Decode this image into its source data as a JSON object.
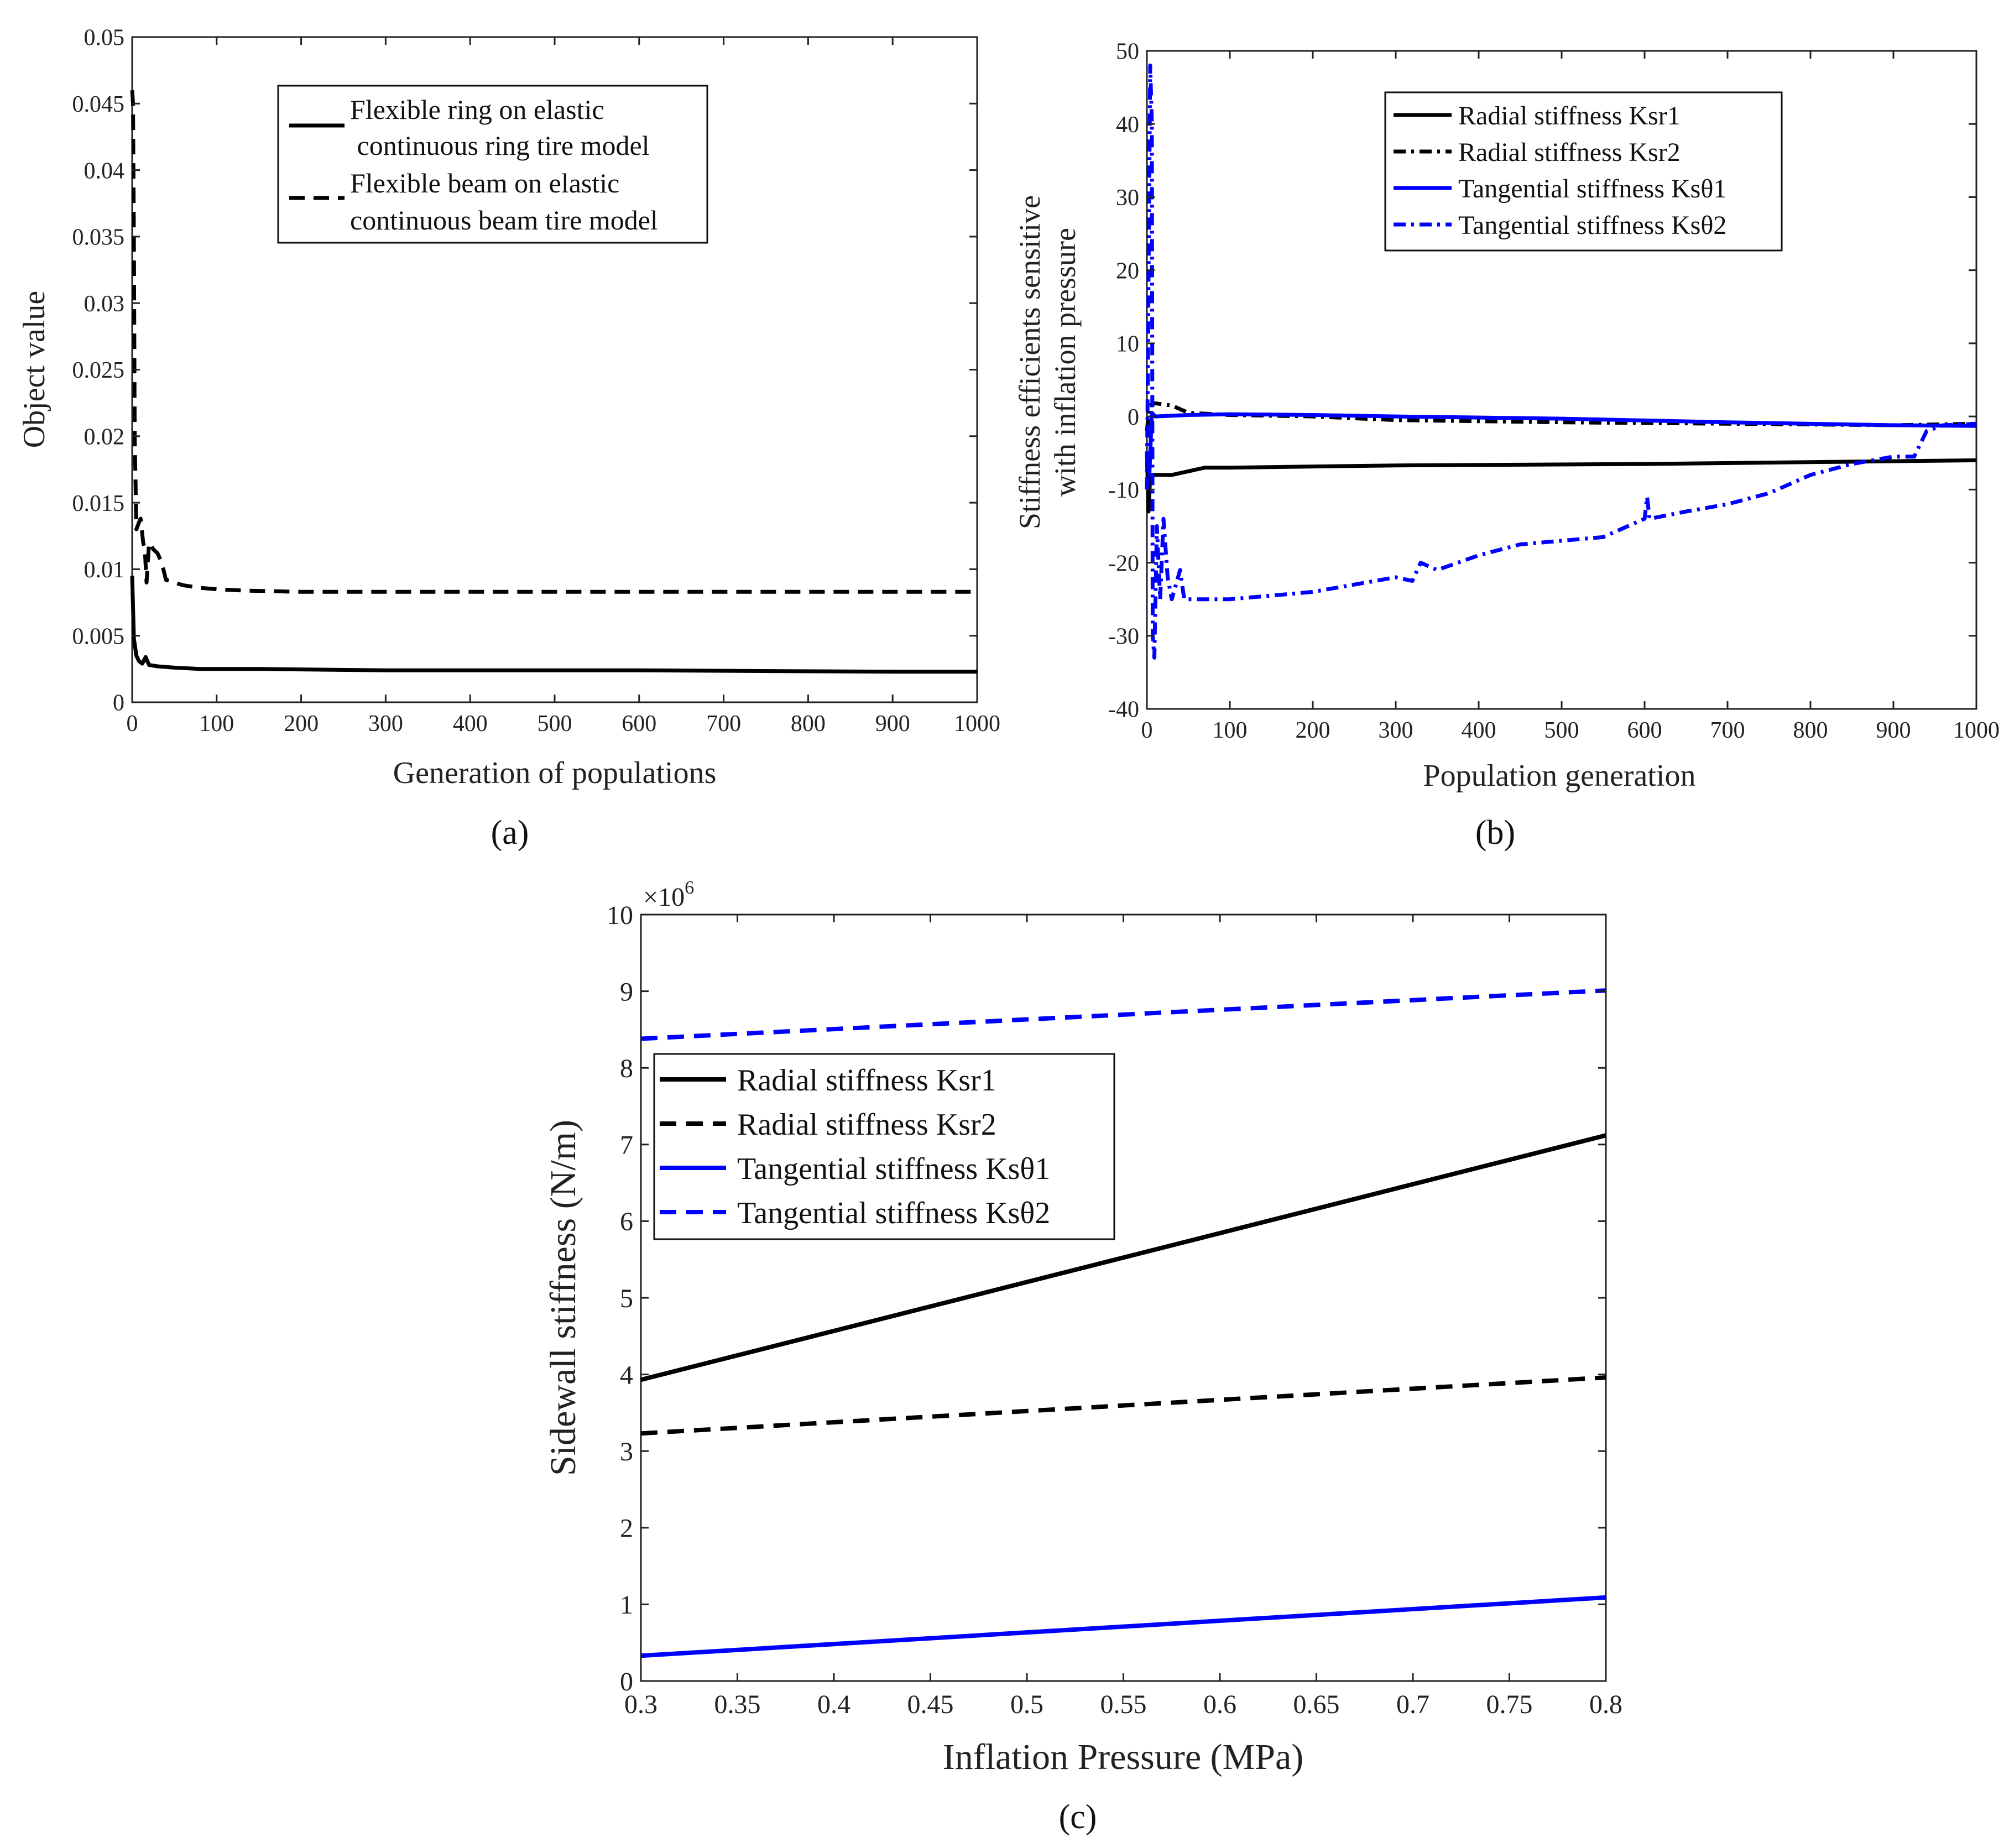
{
  "figure": {
    "panel_a_label": "(a)",
    "panel_b_label": "(b)",
    "panel_c_label": "(c)"
  },
  "chart_data": [
    {
      "id": "a",
      "type": "line",
      "title": "",
      "xlabel": "Generation of populations",
      "ylabel": "Object value",
      "xlim": [
        0,
        1000
      ],
      "ylim": [
        0,
        0.05
      ],
      "xticks": [
        0,
        100,
        200,
        300,
        400,
        500,
        600,
        700,
        800,
        900,
        1000
      ],
      "xtick_labels": [
        "0",
        "100",
        "200",
        "300",
        "400",
        "500",
        "600",
        "700",
        "800",
        "900",
        "1000"
      ],
      "yticks": [
        0,
        0.005,
        0.01,
        0.015,
        0.02,
        0.025,
        0.03,
        0.035,
        0.04,
        0.045,
        0.05
      ],
      "ytick_labels": [
        "0",
        "0.005",
        "0.01",
        "0.015",
        "0.02",
        "0.025",
        "0.03",
        "0.035",
        "0.04",
        "0.045",
        "0.05"
      ],
      "legend_position": "top-right",
      "series": [
        {
          "name": "Flexible ring on elastic continuous ring tire model",
          "legend_lines": [
            "Flexible ring on elastic",
            " continuous ring tire model"
          ],
          "color": "#000000",
          "dash": "solid",
          "points": [
            [
              0,
              0.0095
            ],
            [
              2,
              0.0048
            ],
            [
              5,
              0.0035
            ],
            [
              8,
              0.0031
            ],
            [
              12,
              0.0029
            ],
            [
              16,
              0.0034
            ],
            [
              20,
              0.0028
            ],
            [
              30,
              0.0027
            ],
            [
              50,
              0.0026
            ],
            [
              80,
              0.0025
            ],
            [
              150,
              0.0025
            ],
            [
              300,
              0.0024
            ],
            [
              600,
              0.0024
            ],
            [
              900,
              0.0023
            ],
            [
              1000,
              0.0023
            ]
          ]
        },
        {
          "name": "Flexible beam on elastic continuous beam tire model",
          "legend_lines": [
            "Flexible beam on elastic",
            "continuous beam tire model"
          ],
          "color": "#000000",
          "dash": "dashed",
          "points": [
            [
              0,
              0.046
            ],
            [
              1,
              0.045
            ],
            [
              2,
              0.035
            ],
            [
              3,
              0.02
            ],
            [
              5,
              0.013
            ],
            [
              8,
              0.0135
            ],
            [
              10,
              0.0138
            ],
            [
              13,
              0.012
            ],
            [
              15,
              0.0115
            ],
            [
              17,
              0.009
            ],
            [
              20,
              0.012
            ],
            [
              25,
              0.0115
            ],
            [
              30,
              0.0112
            ],
            [
              35,
              0.0105
            ],
            [
              40,
              0.0092
            ],
            [
              60,
              0.0088
            ],
            [
              80,
              0.0086
            ],
            [
              100,
              0.0085
            ],
            [
              130,
              0.0084
            ],
            [
              200,
              0.0083
            ],
            [
              1000,
              0.0083
            ]
          ]
        }
      ]
    },
    {
      "id": "b",
      "type": "line",
      "title": "",
      "xlabel": "Population generation",
      "ylabel_lines": [
        "Stiffness efficients sensitive",
        "with inflation pressure"
      ],
      "xlim": [
        0,
        1000
      ],
      "ylim": [
        -40,
        50
      ],
      "xticks": [
        0,
        100,
        200,
        300,
        400,
        500,
        600,
        700,
        800,
        900,
        1000
      ],
      "xtick_labels": [
        "0",
        "100",
        "200",
        "300",
        "400",
        "500",
        "600",
        "700",
        "800",
        "900",
        "1000"
      ],
      "yticks": [
        -40,
        -30,
        -20,
        -10,
        0,
        10,
        20,
        30,
        40,
        50
      ],
      "ytick_labels": [
        "-40",
        "-30",
        "-20",
        "-10",
        "0",
        "10",
        "20",
        "30",
        "40",
        "50"
      ],
      "legend_position": "top-right",
      "series": [
        {
          "name": "Radial stiffness Ksr1",
          "color": "#000000",
          "dash": "solid",
          "points": [
            [
              0,
              -5
            ],
            [
              2,
              -13
            ],
            [
              4,
              -8
            ],
            [
              10,
              -8
            ],
            [
              30,
              -8
            ],
            [
              50,
              -7.5
            ],
            [
              70,
              -7
            ],
            [
              100,
              -7
            ],
            [
              300,
              -6.7
            ],
            [
              600,
              -6.5
            ],
            [
              1000,
              -6
            ]
          ]
        },
        {
          "name": "Radial stiffness Ksr2",
          "color": "#000000",
          "dash": "dashdot",
          "points": [
            [
              0,
              -2
            ],
            [
              3,
              1.5
            ],
            [
              10,
              1.8
            ],
            [
              30,
              1.5
            ],
            [
              50,
              0.5
            ],
            [
              100,
              0.2
            ],
            [
              200,
              0
            ],
            [
              300,
              -0.5
            ],
            [
              500,
              -0.8
            ],
            [
              700,
              -1
            ],
            [
              900,
              -1.2
            ],
            [
              1000,
              -1
            ]
          ]
        },
        {
          "name": "Tangential stiffness Ksθ1",
          "color": "#0000FF",
          "dash": "solid",
          "points": [
            [
              0,
              -5
            ],
            [
              3,
              -8
            ],
            [
              6,
              0.5
            ],
            [
              10,
              0
            ],
            [
              50,
              0.2
            ],
            [
              100,
              0.3
            ],
            [
              200,
              0.2
            ],
            [
              300,
              0
            ],
            [
              500,
              -0.3
            ],
            [
              700,
              -0.8
            ],
            [
              900,
              -1.2
            ],
            [
              1000,
              -1.3
            ]
          ]
        },
        {
          "name": "Tangential stiffness Ksθ2",
          "color": "#0000FF",
          "dash": "dashdot",
          "points": [
            [
              0,
              -10
            ],
            [
              4,
              48
            ],
            [
              6,
              40
            ],
            [
              7,
              -30
            ],
            [
              9,
              -33
            ],
            [
              12,
              -15
            ],
            [
              16,
              -25
            ],
            [
              20,
              -14
            ],
            [
              25,
              -22
            ],
            [
              30,
              -25
            ],
            [
              40,
              -21
            ],
            [
              45,
              -25
            ],
            [
              100,
              -25
            ],
            [
              150,
              -24.5
            ],
            [
              200,
              -24
            ],
            [
              250,
              -23
            ],
            [
              300,
              -22
            ],
            [
              320,
              -22.5
            ],
            [
              330,
              -20
            ],
            [
              350,
              -21
            ],
            [
              400,
              -19
            ],
            [
              450,
              -17.5
            ],
            [
              500,
              -17
            ],
            [
              550,
              -16.5
            ],
            [
              580,
              -15
            ],
            [
              600,
              -14
            ],
            [
              603,
              -11
            ],
            [
              606,
              -14
            ],
            [
              650,
              -13
            ],
            [
              700,
              -12
            ],
            [
              750,
              -10.5
            ],
            [
              800,
              -8
            ],
            [
              850,
              -6.5
            ],
            [
              900,
              -5.5
            ],
            [
              925,
              -5.5
            ],
            [
              940,
              -2
            ],
            [
              960,
              -1.2
            ],
            [
              1000,
              -1
            ]
          ]
        }
      ]
    },
    {
      "id": "c",
      "type": "line",
      "title": "",
      "xlabel": "Inflation Pressure (MPa)",
      "ylabel": "Sidewall stiffness (N/m)",
      "y_multiplier_base": "×10",
      "y_multiplier_exp": "6",
      "xlim": [
        0.3,
        0.8
      ],
      "ylim": [
        0,
        10
      ],
      "xticks": [
        0.3,
        0.35,
        0.4,
        0.45,
        0.5,
        0.55,
        0.6,
        0.65,
        0.7,
        0.75,
        0.8
      ],
      "xtick_labels": [
        "0.3",
        "0.35",
        "0.4",
        "0.45",
        "0.5",
        "0.55",
        "0.6",
        "0.65",
        "0.7",
        "0.75",
        "0.8"
      ],
      "yticks": [
        0,
        1,
        2,
        3,
        4,
        5,
        6,
        7,
        8,
        9,
        10
      ],
      "ytick_labels": [
        "0",
        "1",
        "2",
        "3",
        "4",
        "5",
        "6",
        "7",
        "8",
        "9",
        "10"
      ],
      "legend_position": "top-left",
      "series": [
        {
          "name": "Radial stiffness Ksr1",
          "color": "#000000",
          "dash": "solid",
          "points": [
            [
              0.3,
              3.93
            ],
            [
              0.8,
              7.12
            ]
          ]
        },
        {
          "name": "Radial stiffness Ksr2",
          "color": "#000000",
          "dash": "dashed",
          "points": [
            [
              0.3,
              3.23
            ],
            [
              0.8,
              3.96
            ]
          ]
        },
        {
          "name": "Tangential stiffness Ksθ1",
          "color": "#0000FF",
          "dash": "solid",
          "points": [
            [
              0.3,
              0.33
            ],
            [
              0.8,
              1.09
            ]
          ]
        },
        {
          "name": "Tangential stiffness Ksθ2",
          "color": "#0000FF",
          "dash": "dashed",
          "points": [
            [
              0.3,
              8.38
            ],
            [
              0.8,
              9.01
            ]
          ]
        }
      ]
    }
  ]
}
